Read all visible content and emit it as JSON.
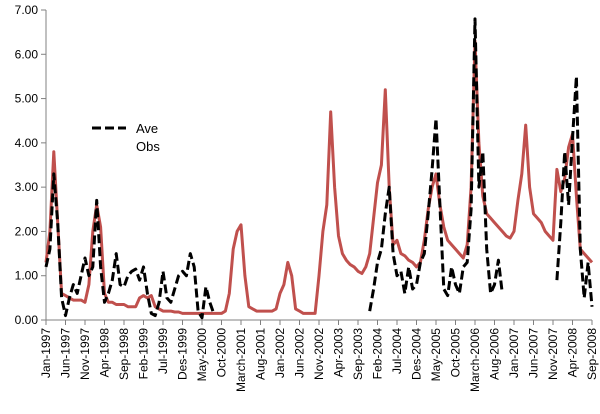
{
  "chart_data": {
    "type": "line",
    "title": "",
    "xlabel": "",
    "ylabel": "",
    "ylim": [
      0,
      7
    ],
    "yticks": [
      "0.00",
      "1.00",
      "2.00",
      "3.00",
      "4.00",
      "5.00",
      "6.00",
      "7.00"
    ],
    "xticks": [
      "Jan-1997",
      "Jun-1997",
      "Nov-1997",
      "Apr-1998",
      "Sep-1998",
      "Feb-1999",
      "Jul-1999",
      "Des-1999",
      "May-2000",
      "Oct-2000",
      "March-2001",
      "Aug-2001",
      "Jan-2002",
      "Jun-2002",
      "Nov-2002",
      "Apr-2003",
      "Sep-2003",
      "Feb-2004",
      "Jul-2004",
      "Des-2004",
      "May-2005",
      "Oct-2005",
      "March-2006",
      "Aug-2006",
      "Jan-2007",
      "Jun-2007",
      "Nov-2007",
      "Apr-2008",
      "Sep-2008"
    ],
    "x_range_months": [
      0,
      140
    ],
    "grid": false,
    "legend_position": "upper-left",
    "series": [
      {
        "name": "Ave",
        "color": "#000000",
        "style": "dashed",
        "points": [
          [
            0,
            1.2
          ],
          [
            1,
            1.6
          ],
          [
            2,
            3.3
          ],
          [
            3,
            2.2
          ],
          [
            4,
            0.5
          ],
          [
            5,
            0.1
          ],
          [
            6,
            0.5
          ],
          [
            7,
            0.8
          ],
          [
            8,
            0.6
          ],
          [
            9,
            1.0
          ],
          [
            10,
            1.4
          ],
          [
            11,
            1.0
          ],
          [
            12,
            1.2
          ],
          [
            13,
            2.7
          ],
          [
            14,
            1.2
          ],
          [
            15,
            0.4
          ],
          [
            16,
            0.6
          ],
          [
            17,
            0.9
          ],
          [
            18,
            1.5
          ],
          [
            19,
            0.8
          ],
          [
            20,
            0.75
          ],
          [
            21,
            1.0
          ],
          [
            22,
            1.1
          ],
          [
            23,
            1.15
          ],
          [
            24,
            0.9
          ],
          [
            25,
            1.2
          ],
          [
            26,
            0.6
          ],
          [
            27,
            0.15
          ],
          [
            28,
            0.1
          ],
          [
            29,
            0.4
          ],
          [
            30,
            1.1
          ],
          [
            31,
            0.5
          ],
          [
            32,
            0.4
          ],
          [
            33,
            0.7
          ],
          [
            34,
            1.0
          ],
          [
            35,
            1.1
          ],
          [
            36,
            1.0
          ],
          [
            37,
            1.5
          ],
          [
            38,
            1.2
          ],
          [
            39,
            0.2
          ],
          [
            40,
            0.05
          ],
          [
            41,
            0.75
          ],
          [
            42,
            0.4
          ],
          [
            43,
            0.15
          ],
          [
            null,
            null
          ],
          [
            83,
            0.2
          ],
          [
            84,
            0.7
          ],
          [
            85,
            1.3
          ],
          [
            86,
            1.6
          ],
          [
            87,
            2.4
          ],
          [
            88,
            3.0
          ],
          [
            89,
            1.5
          ],
          [
            90,
            1.0
          ],
          [
            91,
            1.1
          ],
          [
            92,
            0.6
          ],
          [
            93,
            1.2
          ],
          [
            94,
            0.7
          ],
          [
            95,
            0.8
          ],
          [
            96,
            1.3
          ],
          [
            97,
            1.5
          ],
          [
            98,
            2.4
          ],
          [
            99,
            3.4
          ],
          [
            100,
            4.55
          ],
          [
            101,
            2.6
          ],
          [
            102,
            0.7
          ],
          [
            103,
            0.55
          ],
          [
            104,
            1.2
          ],
          [
            105,
            0.8
          ],
          [
            106,
            0.6
          ],
          [
            107,
            1.2
          ],
          [
            108,
            1.3
          ],
          [
            109,
            2.5
          ],
          [
            110,
            6.8
          ],
          [
            111,
            3.0
          ],
          [
            112,
            3.8
          ],
          [
            113,
            1.6
          ],
          [
            114,
            0.6
          ],
          [
            115,
            0.8
          ],
          [
            116,
            1.35
          ],
          [
            117,
            0.6
          ],
          [
            null,
            null
          ],
          [
            131,
            0.9
          ],
          [
            132,
            2.2
          ],
          [
            133,
            3.8
          ],
          [
            134,
            2.6
          ],
          [
            135,
            4.1
          ],
          [
            136,
            5.5
          ],
          [
            137,
            1.6
          ],
          [
            138,
            0.5
          ],
          [
            139,
            1.3
          ],
          [
            140,
            0.3
          ]
        ]
      },
      {
        "name": "Obs",
        "color": "#c0504d",
        "style": "solid",
        "points": [
          [
            0,
            1.3
          ],
          [
            1,
            2.0
          ],
          [
            2,
            3.8
          ],
          [
            3,
            2.2
          ],
          [
            4,
            0.6
          ],
          [
            5,
            0.55
          ],
          [
            6,
            0.5
          ],
          [
            7,
            0.45
          ],
          [
            8,
            0.45
          ],
          [
            9,
            0.45
          ],
          [
            10,
            0.4
          ],
          [
            11,
            0.8
          ],
          [
            12,
            2.0
          ],
          [
            13,
            2.6
          ],
          [
            14,
            2.1
          ],
          [
            15,
            0.6
          ],
          [
            16,
            0.4
          ],
          [
            17,
            0.4
          ],
          [
            18,
            0.35
          ],
          [
            19,
            0.35
          ],
          [
            20,
            0.35
          ],
          [
            21,
            0.3
          ],
          [
            22,
            0.3
          ],
          [
            23,
            0.3
          ],
          [
            24,
            0.5
          ],
          [
            25,
            0.55
          ],
          [
            26,
            0.5
          ],
          [
            27,
            0.55
          ],
          [
            28,
            0.3
          ],
          [
            29,
            0.25
          ],
          [
            30,
            0.2
          ],
          [
            31,
            0.2
          ],
          [
            32,
            0.2
          ],
          [
            33,
            0.18
          ],
          [
            34,
            0.18
          ],
          [
            35,
            0.15
          ],
          [
            36,
            0.15
          ],
          [
            37,
            0.15
          ],
          [
            38,
            0.15
          ],
          [
            39,
            0.15
          ],
          [
            40,
            0.15
          ],
          [
            41,
            0.15
          ],
          [
            42,
            0.15
          ],
          [
            43,
            0.15
          ],
          [
            44,
            0.15
          ],
          [
            45,
            0.15
          ],
          [
            46,
            0.2
          ],
          [
            47,
            0.6
          ],
          [
            48,
            1.6
          ],
          [
            49,
            2.0
          ],
          [
            50,
            2.15
          ],
          [
            51,
            1.0
          ],
          [
            52,
            0.3
          ],
          [
            53,
            0.25
          ],
          [
            54,
            0.2
          ],
          [
            55,
            0.2
          ],
          [
            56,
            0.2
          ],
          [
            57,
            0.2
          ],
          [
            58,
            0.2
          ],
          [
            59,
            0.25
          ],
          [
            60,
            0.6
          ],
          [
            61,
            0.8
          ],
          [
            62,
            1.3
          ],
          [
            63,
            1.0
          ],
          [
            64,
            0.25
          ],
          [
            65,
            0.2
          ],
          [
            66,
            0.15
          ],
          [
            67,
            0.15
          ],
          [
            68,
            0.15
          ],
          [
            69,
            0.15
          ],
          [
            70,
            1.0
          ],
          [
            71,
            2.0
          ],
          [
            72,
            2.6
          ],
          [
            73,
            4.7
          ],
          [
            74,
            3.0
          ],
          [
            75,
            1.9
          ],
          [
            76,
            1.5
          ],
          [
            77,
            1.35
          ],
          [
            78,
            1.25
          ],
          [
            79,
            1.2
          ],
          [
            80,
            1.1
          ],
          [
            81,
            1.05
          ],
          [
            82,
            1.2
          ],
          [
            83,
            1.5
          ],
          [
            84,
            2.3
          ],
          [
            85,
            3.1
          ],
          [
            86,
            3.5
          ],
          [
            87,
            5.2
          ],
          [
            88,
            3.0
          ],
          [
            89,
            1.7
          ],
          [
            90,
            1.8
          ],
          [
            91,
            1.5
          ],
          [
            92,
            1.45
          ],
          [
            93,
            1.35
          ],
          [
            94,
            1.3
          ],
          [
            95,
            1.2
          ],
          [
            96,
            1.3
          ],
          [
            97,
            1.8
          ],
          [
            98,
            2.5
          ],
          [
            99,
            3.0
          ],
          [
            100,
            3.3
          ],
          [
            101,
            2.6
          ],
          [
            102,
            2.1
          ],
          [
            103,
            1.8
          ],
          [
            104,
            1.7
          ],
          [
            105,
            1.6
          ],
          [
            106,
            1.5
          ],
          [
            107,
            1.4
          ],
          [
            108,
            1.7
          ],
          [
            109,
            3.0
          ],
          [
            110,
            6.3
          ],
          [
            111,
            4.0
          ],
          [
            112,
            2.8
          ],
          [
            113,
            2.4
          ],
          [
            114,
            2.3
          ],
          [
            115,
            2.2
          ],
          [
            116,
            2.1
          ],
          [
            117,
            2.0
          ],
          [
            118,
            1.9
          ],
          [
            119,
            1.85
          ],
          [
            120,
            2.0
          ],
          [
            121,
            2.7
          ],
          [
            122,
            3.3
          ],
          [
            123,
            4.4
          ],
          [
            124,
            3.0
          ],
          [
            125,
            2.4
          ],
          [
            126,
            2.3
          ],
          [
            127,
            2.2
          ],
          [
            128,
            2.0
          ],
          [
            129,
            1.9
          ],
          [
            130,
            1.8
          ],
          [
            131,
            3.4
          ],
          [
            132,
            2.9
          ],
          [
            133,
            3.2
          ],
          [
            134,
            3.9
          ],
          [
            135,
            4.2
          ],
          [
            136,
            2.8
          ],
          [
            137,
            1.6
          ],
          [
            138,
            1.5
          ],
          [
            139,
            1.4
          ],
          [
            140,
            1.3
          ]
        ]
      }
    ]
  }
}
